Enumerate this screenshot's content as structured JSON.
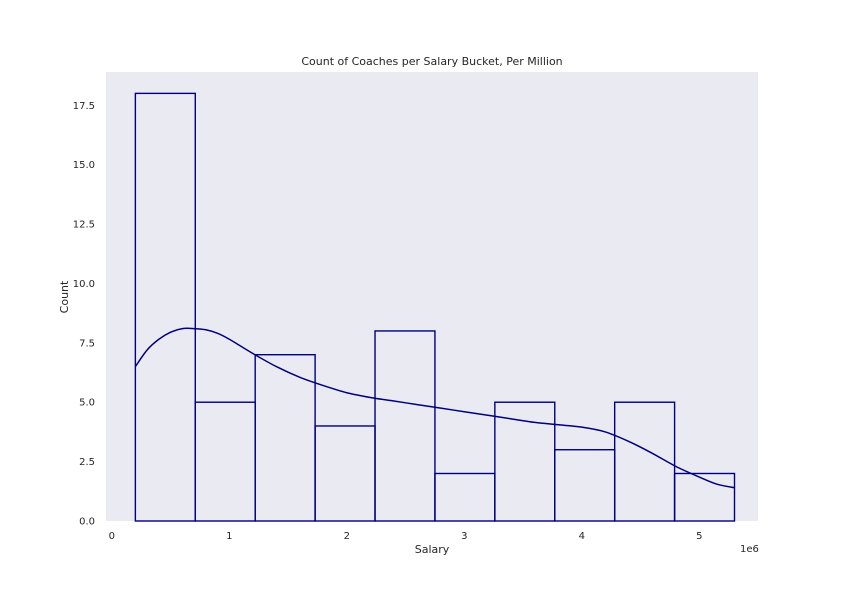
{
  "chart_data": {
    "type": "bar",
    "title": "Count of Coaches per Salary Bucket, Per Million",
    "xlabel": "Salary",
    "ylabel": "Count",
    "x_offset_label": "1e6",
    "xlim": [
      -0.05,
      5.5
    ],
    "ylim": [
      0,
      18.9
    ],
    "x_ticks": [
      0,
      1,
      2,
      3,
      4,
      5
    ],
    "x_tick_labels": [
      "0",
      "1",
      "2",
      "3",
      "4",
      "5"
    ],
    "y_ticks": [
      0,
      2.5,
      5,
      7.5,
      10,
      12.5,
      15,
      17.5
    ],
    "y_tick_labels": [
      "0.0",
      "2.5",
      "5.0",
      "7.5",
      "10.0",
      "12.5",
      "15.0",
      "17.5"
    ],
    "bins": [
      {
        "x0": 0.2,
        "x1": 0.71,
        "count": 18
      },
      {
        "x0": 0.71,
        "x1": 1.22,
        "count": 5
      },
      {
        "x0": 1.22,
        "x1": 1.73,
        "count": 7
      },
      {
        "x0": 1.73,
        "x1": 2.24,
        "count": 4
      },
      {
        "x0": 2.24,
        "x1": 2.75,
        "count": 8
      },
      {
        "x0": 2.75,
        "x1": 3.26,
        "count": 2
      },
      {
        "x0": 3.26,
        "x1": 3.77,
        "count": 5
      },
      {
        "x0": 3.77,
        "x1": 4.28,
        "count": 3
      },
      {
        "x0": 4.28,
        "x1": 4.79,
        "count": 5
      },
      {
        "x0": 4.79,
        "x1": 5.3,
        "count": 2
      }
    ],
    "kde_curve": {
      "x": [
        0.2,
        0.3,
        0.4,
        0.5,
        0.6,
        0.7,
        0.8,
        0.9,
        1.0,
        1.2,
        1.4,
        1.6,
        1.8,
        2.0,
        2.2,
        2.4,
        2.6,
        2.8,
        3.0,
        3.2,
        3.4,
        3.6,
        3.8,
        4.0,
        4.2,
        4.4,
        4.6,
        4.8,
        5.0,
        5.15,
        5.3
      ],
      "y": [
        6.5,
        7.2,
        7.65,
        7.95,
        8.1,
        8.1,
        8.05,
        7.9,
        7.65,
        7.05,
        6.5,
        6.05,
        5.7,
        5.4,
        5.2,
        5.05,
        4.9,
        4.75,
        4.6,
        4.45,
        4.3,
        4.15,
        4.05,
        3.95,
        3.75,
        3.35,
        2.85,
        2.3,
        1.85,
        1.55,
        1.4
      ]
    },
    "grid": false,
    "colors": {
      "background": "#eaeaf2",
      "bar_edge": "#000080",
      "bar_fill": "none",
      "kde_line": "#000080"
    }
  }
}
